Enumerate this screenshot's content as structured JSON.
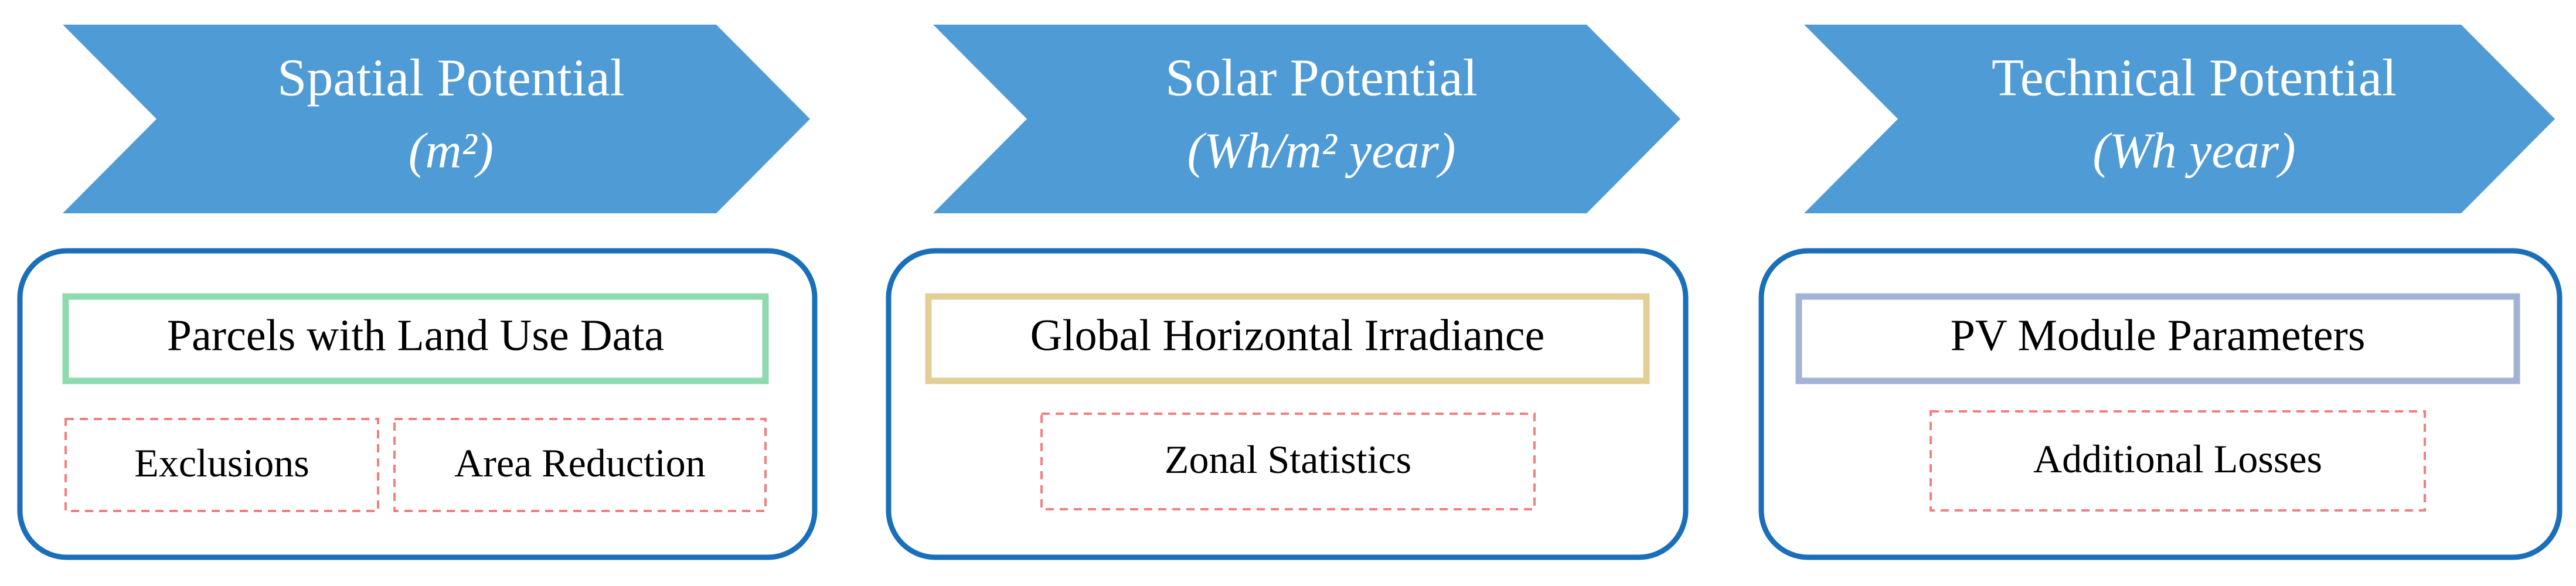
{
  "columns": [
    {
      "title": "Spatial Potential",
      "unit": "(m²)",
      "main": "Parcels with Land Use Data",
      "steps": [
        "Exclusions",
        "Area Reduction"
      ]
    },
    {
      "title": "Solar Potential",
      "unit": "(Wh/m² year)",
      "main": "Global Horizontal Irradiance",
      "steps": [
        "Zonal Statistics"
      ]
    },
    {
      "title": "Technical Potential",
      "unit": "(Wh year)",
      "main": "PV Module Parameters",
      "steps": [
        "Additional Losses"
      ]
    }
  ]
}
